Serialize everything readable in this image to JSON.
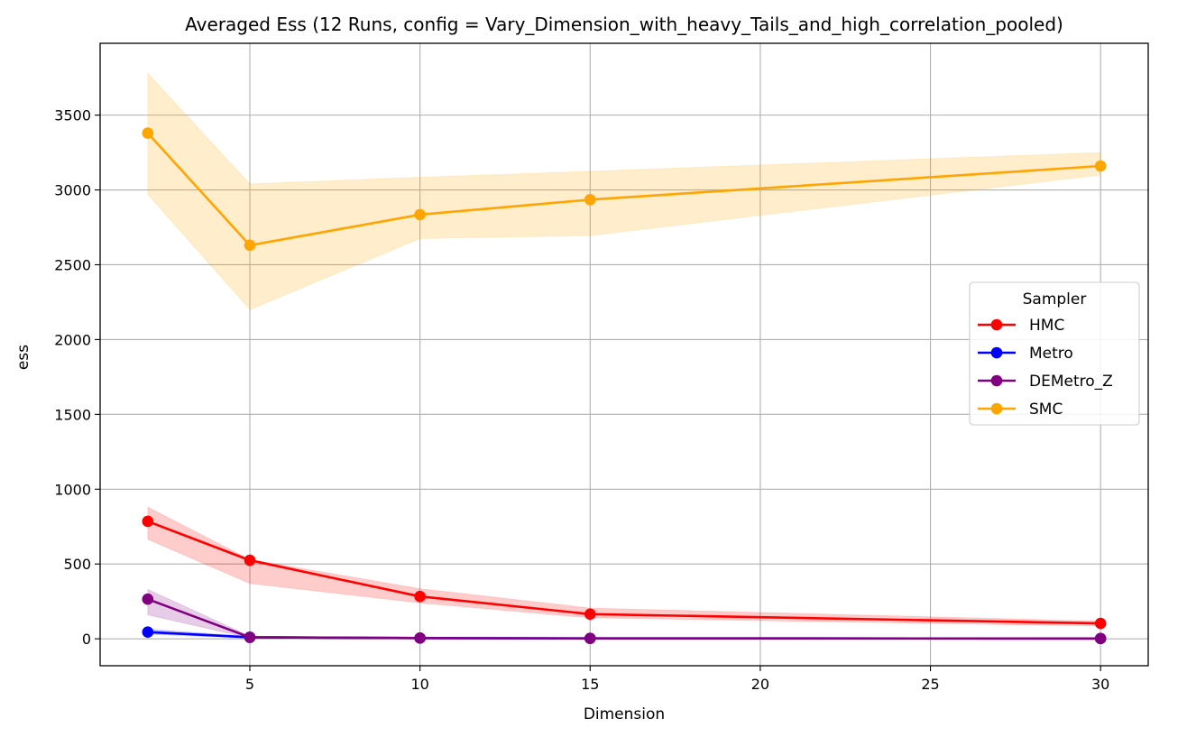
{
  "chart_data": {
    "type": "line",
    "title": "Averaged Ess (12 Runs, config = Vary_Dimension_with_heavy_Tails_and_high_correlation_pooled)",
    "xlabel": "Dimension",
    "ylabel": "ess",
    "x": [
      2,
      5,
      10,
      15,
      30
    ],
    "xlim": [
      0.6,
      31.4
    ],
    "ylim": [
      -180,
      3980
    ],
    "xticks": [
      5,
      10,
      15,
      20,
      25,
      30
    ],
    "yticks": [
      0,
      500,
      1000,
      1500,
      2000,
      2500,
      3000,
      3500
    ],
    "grid": true,
    "legend": {
      "title": "Sampler",
      "position": "center-right"
    },
    "series": [
      {
        "name": "HMC",
        "color": "#ff0000",
        "values": [
          785,
          525,
          283,
          165,
          103
        ],
        "lower": [
          665,
          370,
          240,
          140,
          85
        ],
        "upper": [
          880,
          530,
          335,
          205,
          118
        ]
      },
      {
        "name": "Metro",
        "color": "#0000ff",
        "values": [
          45,
          10,
          5,
          3,
          2
        ],
        "lower": [
          30,
          5,
          2,
          1,
          1
        ],
        "upper": [
          65,
          15,
          8,
          5,
          3
        ]
      },
      {
        "name": "DEMetro_Z",
        "color": "#800080",
        "values": [
          265,
          10,
          5,
          3,
          2
        ],
        "lower": [
          160,
          5,
          2,
          1,
          1
        ],
        "upper": [
          330,
          18,
          8,
          5,
          3
        ]
      },
      {
        "name": "SMC",
        "color": "#ffa500",
        "values": [
          3380,
          2630,
          2835,
          2935,
          3160
        ],
        "lower": [
          2970,
          2200,
          2675,
          2695,
          3100
        ],
        "upper": [
          3780,
          3040,
          3085,
          3125,
          3250
        ]
      }
    ]
  }
}
